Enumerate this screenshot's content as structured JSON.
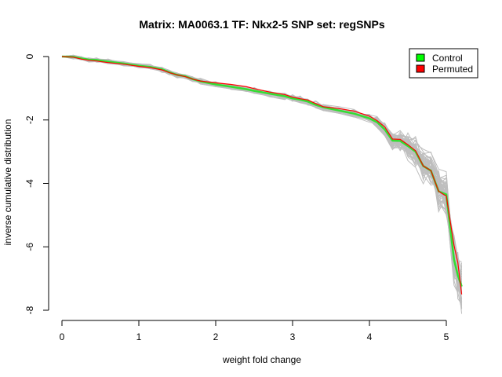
{
  "chart_data": {
    "type": "line",
    "title": "Matrix: MA0063.1 TF: Nkx2-5 SNP set: regSNPs",
    "xlabel": "weight fold change",
    "ylabel": "inverse cumulative distribution",
    "xlim": [
      0,
      5.25
    ],
    "ylim": [
      -8.2,
      0.2
    ],
    "xticks": [
      "0",
      "1",
      "2",
      "3",
      "4",
      "5"
    ],
    "yticks": [
      "0",
      "-2",
      "-4",
      "-6",
      "-8"
    ],
    "legend_position": "top-right",
    "grid": false,
    "legend": [
      {
        "label": "Control",
        "color": "#00ff00"
      },
      {
        "label": "Permuted",
        "color": "#ff0000"
      }
    ],
    "series": [
      {
        "name": "Control",
        "color": "#33dd33",
        "x": [
          0.0,
          0.15,
          0.25,
          0.35,
          0.45,
          0.6,
          0.8,
          1.0,
          1.15,
          1.3,
          1.4,
          1.5,
          1.6,
          1.7,
          1.8,
          2.0,
          2.2,
          2.4,
          2.5,
          2.7,
          2.9,
          3.0,
          3.1,
          3.2,
          3.3,
          3.4,
          3.6,
          3.8,
          4.0,
          4.1,
          4.2,
          4.3,
          4.4,
          4.5,
          4.6,
          4.7,
          4.8,
          4.9,
          5.0,
          5.1,
          5.15,
          5.2
        ],
        "y": [
          0.0,
          -0.01,
          -0.06,
          -0.1,
          -0.11,
          -0.16,
          -0.22,
          -0.29,
          -0.33,
          -0.4,
          -0.5,
          -0.58,
          -0.62,
          -0.71,
          -0.78,
          -0.88,
          -0.95,
          -1.03,
          -1.08,
          -1.17,
          -1.25,
          -1.32,
          -1.36,
          -1.42,
          -1.52,
          -1.6,
          -1.7,
          -1.8,
          -1.95,
          -2.07,
          -2.3,
          -2.65,
          -2.66,
          -2.82,
          -3.0,
          -3.45,
          -3.6,
          -4.25,
          -4.35,
          -6.4,
          -6.9,
          -7.25
        ]
      },
      {
        "name": "Permuted",
        "color": "#ff0000",
        "x": [
          0.0,
          0.15,
          0.25,
          0.35,
          0.45,
          0.6,
          0.8,
          1.0,
          1.15,
          1.3,
          1.4,
          1.5,
          1.6,
          1.7,
          1.8,
          2.0,
          2.2,
          2.4,
          2.5,
          2.7,
          2.9,
          3.0,
          3.1,
          3.2,
          3.3,
          3.4,
          3.6,
          3.8,
          4.0,
          4.1,
          4.2,
          4.3,
          4.4,
          4.5,
          4.6,
          4.7,
          4.8,
          4.9,
          5.0,
          5.1,
          5.15,
          5.2
        ],
        "y": [
          0.0,
          -0.02,
          -0.08,
          -0.12,
          -0.14,
          -0.19,
          -0.24,
          -0.31,
          -0.35,
          -0.42,
          -0.51,
          -0.58,
          -0.63,
          -0.71,
          -0.77,
          -0.83,
          -0.88,
          -0.95,
          -1.01,
          -1.12,
          -1.2,
          -1.28,
          -1.33,
          -1.37,
          -1.48,
          -1.58,
          -1.64,
          -1.72,
          -1.88,
          -2.02,
          -2.22,
          -2.6,
          -2.61,
          -2.78,
          -2.97,
          -3.45,
          -3.6,
          -4.25,
          -4.4,
          -5.95,
          -6.5,
          -7.5
        ]
      }
    ],
    "background_series_color": "#bebebe",
    "background_series_count": 60
  }
}
